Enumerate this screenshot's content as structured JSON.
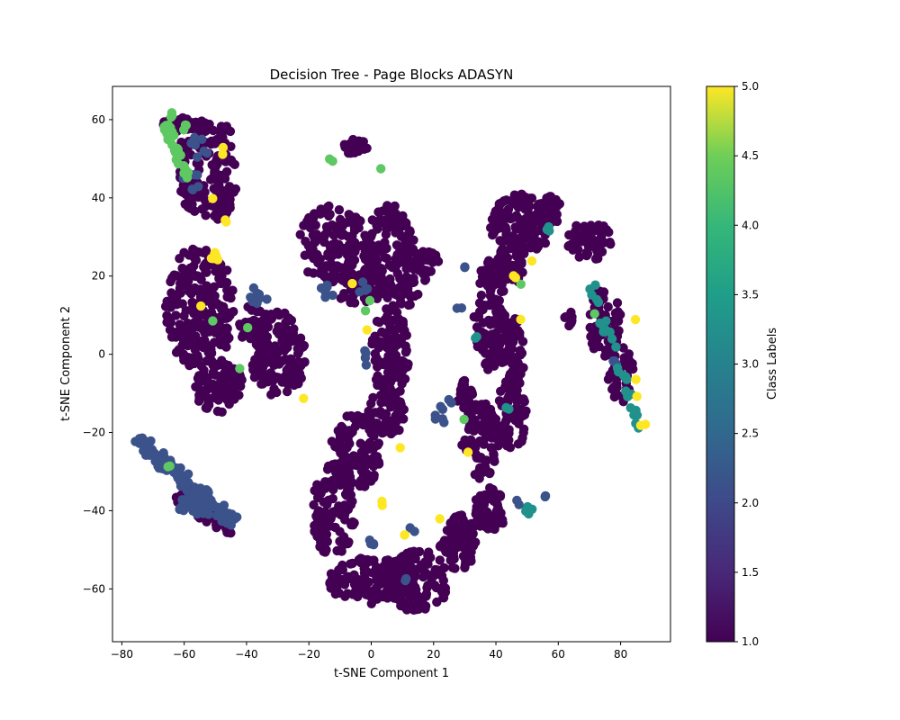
{
  "chart_data": {
    "type": "scatter",
    "title": "Decision Tree - Page Blocks ADASYN",
    "xlabel": "t-SNE Component 1",
    "ylabel": "t-SNE Component 2",
    "xlim": [
      -83,
      96
    ],
    "ylim": [
      -73.5,
      68.5
    ],
    "xticks": [
      -80,
      -60,
      -40,
      -20,
      0,
      20,
      40,
      60,
      80
    ],
    "yticks": [
      -60,
      -40,
      -20,
      0,
      20,
      40,
      60
    ],
    "grid": false,
    "colorbar": {
      "label": "Class Labels",
      "colormap": "viridis",
      "range": [
        1.0,
        5.0
      ],
      "ticks": [
        "1.0",
        "1.5",
        "2.0",
        "2.5",
        "3.0",
        "3.5",
        "4.0",
        "4.5",
        "5.0"
      ]
    },
    "class_colors": {
      "1": "#440154",
      "2": "#3b528b",
      "3": "#21918c",
      "4": "#5ec962",
      "5": "#fde725"
    },
    "clusters": [
      {
        "class": 1,
        "shape": "blob",
        "cx": -55,
        "cy": 48,
        "rx": 7,
        "ry": 13,
        "n": 90
      },
      {
        "class": 1,
        "shape": "blob",
        "cx": -47,
        "cy": 47,
        "rx": 4,
        "ry": 12,
        "n": 50
      },
      {
        "class": 1,
        "shape": "blob",
        "cx": -55,
        "cy": 12,
        "rx": 11,
        "ry": 16,
        "n": 220
      },
      {
        "class": 1,
        "shape": "blob",
        "cx": -49,
        "cy": -8,
        "rx": 8,
        "ry": 7,
        "n": 90
      },
      {
        "class": 1,
        "shape": "blob",
        "cx": -30,
        "cy": 0,
        "rx": 9,
        "ry": 11,
        "n": 140
      },
      {
        "class": 1,
        "shape": "blob",
        "cx": -38,
        "cy": 8,
        "rx": 5,
        "ry": 5,
        "n": 40
      },
      {
        "class": 1,
        "shape": "blob",
        "cx": -25,
        "cy": -5,
        "rx": 3,
        "ry": 3,
        "n": 20
      },
      {
        "class": 1,
        "shape": "blob",
        "cx": -12,
        "cy": 28,
        "rx": 12,
        "ry": 10,
        "n": 140
      },
      {
        "class": 1,
        "shape": "blob",
        "cx": -5,
        "cy": 18,
        "rx": 8,
        "ry": 5,
        "n": 50
      },
      {
        "class": 1,
        "shape": "blob",
        "cx": -5,
        "cy": 53,
        "rx": 4,
        "ry": 2,
        "n": 25
      },
      {
        "class": 1,
        "shape": "blob",
        "cx": 6,
        "cy": 25,
        "rx": 8,
        "ry": 14,
        "n": 130
      },
      {
        "class": 1,
        "shape": "blob",
        "cx": 12,
        "cy": 20,
        "rx": 6,
        "ry": 8,
        "n": 50
      },
      {
        "class": 1,
        "shape": "blob",
        "cx": 18,
        "cy": 24,
        "rx": 4,
        "ry": 3,
        "n": 20
      },
      {
        "class": 1,
        "shape": "blob",
        "cx": 6,
        "cy": 0,
        "rx": 6,
        "ry": 12,
        "n": 110
      },
      {
        "class": 1,
        "shape": "blob",
        "cx": 5,
        "cy": -15,
        "rx": 6,
        "ry": 6,
        "n": 60
      },
      {
        "class": 1,
        "shape": "blob",
        "cx": -5,
        "cy": -25,
        "rx": 8,
        "ry": 10,
        "n": 110
      },
      {
        "class": 1,
        "shape": "blob",
        "cx": -12,
        "cy": -40,
        "rx": 7,
        "ry": 12,
        "n": 110
      },
      {
        "class": 1,
        "shape": "blob",
        "cx": 0,
        "cy": -58,
        "rx": 14,
        "ry": 6,
        "n": 140
      },
      {
        "class": 1,
        "shape": "blob",
        "cx": 15,
        "cy": -58,
        "rx": 10,
        "ry": 8,
        "n": 110
      },
      {
        "class": 1,
        "shape": "blob",
        "cx": 28,
        "cy": -48,
        "rx": 6,
        "ry": 7,
        "n": 70
      },
      {
        "class": 1,
        "shape": "blob",
        "cx": 38,
        "cy": -40,
        "rx": 5,
        "ry": 6,
        "n": 50
      },
      {
        "class": 1,
        "shape": "blob",
        "cx": 35,
        "cy": -22,
        "rx": 6,
        "ry": 10,
        "n": 90
      },
      {
        "class": 1,
        "shape": "blob",
        "cx": 45,
        "cy": -15,
        "rx": 5,
        "ry": 10,
        "n": 70
      },
      {
        "class": 1,
        "shape": "blob",
        "cx": 38,
        "cy": 10,
        "rx": 5,
        "ry": 14,
        "n": 110
      },
      {
        "class": 1,
        "shape": "blob",
        "cx": 45,
        "cy": 0,
        "rx": 4,
        "ry": 12,
        "n": 70
      },
      {
        "class": 1,
        "shape": "blob",
        "cx": 48,
        "cy": 33,
        "rx": 10,
        "ry": 8,
        "n": 120
      },
      {
        "class": 1,
        "shape": "blob",
        "cx": 57,
        "cy": 37,
        "rx": 4,
        "ry": 4,
        "n": 30
      },
      {
        "class": 1,
        "shape": "blob",
        "cx": 43,
        "cy": 22,
        "rx": 6,
        "ry": 5,
        "n": 50
      },
      {
        "class": 1,
        "shape": "blob",
        "cx": 70,
        "cy": 29,
        "rx": 7,
        "ry": 5,
        "n": 60
      },
      {
        "class": 1,
        "shape": "blob",
        "cx": 75,
        "cy": 8,
        "rx": 5,
        "ry": 10,
        "n": 60
      },
      {
        "class": 1,
        "shape": "blob",
        "cx": 80,
        "cy": -5,
        "rx": 4,
        "ry": 8,
        "n": 40
      },
      {
        "class": 1,
        "shape": "blob",
        "cx": 64,
        "cy": 9,
        "rx": 2,
        "ry": 2,
        "n": 10
      },
      {
        "class": 1,
        "shape": "blob",
        "cx": 30,
        "cy": -10,
        "rx": 3,
        "ry": 4,
        "n": 20
      },
      {
        "class": 1,
        "shape": "blob",
        "cx": -48,
        "cy": 38,
        "rx": 3,
        "ry": 4,
        "n": 20
      },
      {
        "class": 1,
        "shape": "blob",
        "cx": -62,
        "cy": 59,
        "rx": 5,
        "ry": 2,
        "n": 20
      },
      {
        "class": 1,
        "shape": "line",
        "x1": -62,
        "y1": -37,
        "x2": -46,
        "y2": -44,
        "w": 2,
        "n": 40
      },
      {
        "class": 2,
        "shape": "line",
        "x1": -75,
        "y1": -22,
        "x2": -44,
        "y2": -43,
        "w": 1.8,
        "n": 110
      },
      {
        "class": 2,
        "shape": "blob",
        "cx": -56,
        "cy": -38,
        "rx": 6,
        "ry": 4,
        "n": 40
      },
      {
        "class": 2,
        "shape": "blob",
        "cx": -55,
        "cy": 53,
        "rx": 3,
        "ry": 3,
        "n": 8
      },
      {
        "class": 2,
        "shape": "blob",
        "cx": -58,
        "cy": 44,
        "rx": 3,
        "ry": 3,
        "n": 8
      },
      {
        "class": 2,
        "shape": "blob",
        "cx": -37,
        "cy": 15,
        "rx": 4,
        "ry": 2,
        "n": 8
      },
      {
        "class": 2,
        "shape": "blob",
        "cx": -14,
        "cy": 16,
        "rx": 3,
        "ry": 2,
        "n": 6
      },
      {
        "class": 2,
        "shape": "blob",
        "cx": -3,
        "cy": 17,
        "rx": 2,
        "ry": 2,
        "n": 4
      },
      {
        "class": 2,
        "shape": "blob",
        "cx": -2,
        "cy": -1,
        "rx": 2,
        "ry": 2,
        "n": 4
      },
      {
        "class": 2,
        "shape": "blob",
        "cx": 22,
        "cy": -16,
        "rx": 2,
        "ry": 3,
        "n": 6
      },
      {
        "class": 2,
        "shape": "blob",
        "cx": 25,
        "cy": -12,
        "rx": 1,
        "ry": 1,
        "n": 3
      },
      {
        "class": 2,
        "shape": "blob",
        "cx": 1,
        "cy": -48,
        "rx": 2,
        "ry": 1,
        "n": 4
      },
      {
        "class": 2,
        "shape": "blob",
        "cx": 13,
        "cy": -45,
        "rx": 1,
        "ry": 1,
        "n": 2
      },
      {
        "class": 2,
        "shape": "blob",
        "cx": 11,
        "cy": -58,
        "rx": 1,
        "ry": 1,
        "n": 2
      },
      {
        "class": 2,
        "shape": "blob",
        "cx": 30,
        "cy": 23,
        "rx": 1,
        "ry": 1,
        "n": 2
      },
      {
        "class": 2,
        "shape": "blob",
        "cx": 28,
        "cy": 12,
        "rx": 1,
        "ry": 1,
        "n": 2
      },
      {
        "class": 2,
        "shape": "blob",
        "cx": 55,
        "cy": -36,
        "rx": 1,
        "ry": 1,
        "n": 2
      },
      {
        "class": 2,
        "shape": "blob",
        "cx": 47,
        "cy": -38,
        "rx": 1,
        "ry": 1,
        "n": 2
      },
      {
        "class": 2,
        "shape": "blob",
        "cx": 78,
        "cy": -2,
        "rx": 1,
        "ry": 1,
        "n": 3
      },
      {
        "class": 3,
        "shape": "blob",
        "cx": 51,
        "cy": -40,
        "rx": 1.5,
        "ry": 1.5,
        "n": 6
      },
      {
        "class": 3,
        "shape": "blob",
        "cx": 57,
        "cy": 32,
        "rx": 1,
        "ry": 1,
        "n": 3
      },
      {
        "class": 3,
        "shape": "line",
        "x1": 71,
        "y1": 17,
        "x2": 86,
        "y2": -19,
        "w": 1.2,
        "n": 30
      },
      {
        "class": 3,
        "shape": "blob",
        "cx": 33,
        "cy": 4,
        "rx": 1,
        "ry": 1,
        "n": 2
      },
      {
        "class": 3,
        "shape": "blob",
        "cx": 44,
        "cy": -13,
        "rx": 1,
        "ry": 1,
        "n": 2
      },
      {
        "class": 4,
        "shape": "line",
        "x1": -66,
        "y1": 59,
        "x2": -59,
        "y2": 45,
        "w": 1,
        "n": 40
      },
      {
        "class": 4,
        "shape": "blob",
        "cx": -64,
        "cy": 61,
        "rx": 1,
        "ry": 1,
        "n": 3
      },
      {
        "class": 4,
        "shape": "blob",
        "cx": -60,
        "cy": 58,
        "rx": 1,
        "ry": 1,
        "n": 3
      },
      {
        "class": 4,
        "shape": "blob",
        "cx": -13,
        "cy": 49.5,
        "rx": 1,
        "ry": 0.5,
        "n": 2
      },
      {
        "class": 4,
        "shape": "blob",
        "cx": 3,
        "cy": 47,
        "rx": 0.5,
        "ry": 0.5,
        "n": 1
      },
      {
        "class": 4,
        "shape": "blob",
        "cx": -51,
        "cy": 8.5,
        "rx": 0.5,
        "ry": 0.5,
        "n": 1
      },
      {
        "class": 4,
        "shape": "blob",
        "cx": -42,
        "cy": -4,
        "rx": 0.5,
        "ry": 0.5,
        "n": 1
      },
      {
        "class": 4,
        "shape": "blob",
        "cx": -40,
        "cy": 6.5,
        "rx": 0.5,
        "ry": 0.5,
        "n": 1
      },
      {
        "class": 4,
        "shape": "blob",
        "cx": -2,
        "cy": 11,
        "rx": 0.5,
        "ry": 0.5,
        "n": 1
      },
      {
        "class": 4,
        "shape": "blob",
        "cx": 0,
        "cy": 13.5,
        "rx": 0.5,
        "ry": 0.5,
        "n": 1
      },
      {
        "class": 4,
        "shape": "blob",
        "cx": -65,
        "cy": -29,
        "rx": 1,
        "ry": 0.5,
        "n": 2
      },
      {
        "class": 4,
        "shape": "blob",
        "cx": 30,
        "cy": -17,
        "rx": 0.5,
        "ry": 0.5,
        "n": 1
      },
      {
        "class": 4,
        "shape": "blob",
        "cx": 48,
        "cy": 17.5,
        "rx": 0.5,
        "ry": 0.5,
        "n": 1
      },
      {
        "class": 4,
        "shape": "blob",
        "cx": 72,
        "cy": 10,
        "rx": 0.5,
        "ry": 0.5,
        "n": 1
      },
      {
        "class": 5,
        "shape": "blob",
        "cx": -50,
        "cy": 25,
        "rx": 1.5,
        "ry": 1,
        "n": 5
      },
      {
        "class": 5,
        "shape": "blob",
        "cx": -46,
        "cy": 34,
        "rx": 1,
        "ry": 1,
        "n": 2
      },
      {
        "class": 5,
        "shape": "blob",
        "cx": -48,
        "cy": 52,
        "rx": 1,
        "ry": 1,
        "n": 2
      },
      {
        "class": 5,
        "shape": "blob",
        "cx": -51,
        "cy": 40,
        "rx": 0.5,
        "ry": 0.5,
        "n": 1
      },
      {
        "class": 5,
        "shape": "blob",
        "cx": -55,
        "cy": 12,
        "rx": 0.5,
        "ry": 0.5,
        "n": 1
      },
      {
        "class": 5,
        "shape": "blob",
        "cx": -22,
        "cy": -11,
        "rx": 0.5,
        "ry": 0.5,
        "n": 1
      },
      {
        "class": 5,
        "shape": "blob",
        "cx": -6,
        "cy": 18,
        "rx": 0.5,
        "ry": 0.5,
        "n": 1
      },
      {
        "class": 5,
        "shape": "blob",
        "cx": -1,
        "cy": 6,
        "rx": 0.5,
        "ry": 0.5,
        "n": 1
      },
      {
        "class": 5,
        "shape": "blob",
        "cx": 9,
        "cy": -23.5,
        "rx": 0.5,
        "ry": 0.5,
        "n": 1
      },
      {
        "class": 5,
        "shape": "blob",
        "cx": 4,
        "cy": -38,
        "rx": 1,
        "ry": 1,
        "n": 2
      },
      {
        "class": 5,
        "shape": "blob",
        "cx": 10,
        "cy": -46,
        "rx": 1,
        "ry": 0.5,
        "n": 2
      },
      {
        "class": 5,
        "shape": "blob",
        "cx": 22,
        "cy": -42,
        "rx": 0.5,
        "ry": 0.5,
        "n": 1
      },
      {
        "class": 5,
        "shape": "blob",
        "cx": 31,
        "cy": -25,
        "rx": 0.5,
        "ry": 0.5,
        "n": 1
      },
      {
        "class": 5,
        "shape": "blob",
        "cx": 46,
        "cy": 20,
        "rx": 1,
        "ry": 0.5,
        "n": 2
      },
      {
        "class": 5,
        "shape": "blob",
        "cx": 52,
        "cy": 24,
        "rx": 0.5,
        "ry": 0.5,
        "n": 1
      },
      {
        "class": 5,
        "shape": "blob",
        "cx": 48,
        "cy": 9,
        "rx": 0.5,
        "ry": 0.5,
        "n": 1
      },
      {
        "class": 5,
        "shape": "blob",
        "cx": 85,
        "cy": 9,
        "rx": 0.5,
        "ry": 0.5,
        "n": 1
      },
      {
        "class": 5,
        "shape": "blob",
        "cx": 85,
        "cy": -6,
        "rx": 0.5,
        "ry": 0.5,
        "n": 1
      },
      {
        "class": 5,
        "shape": "blob",
        "cx": 85,
        "cy": -11,
        "rx": 0.5,
        "ry": 0.5,
        "n": 1
      },
      {
        "class": 5,
        "shape": "blob",
        "cx": 87,
        "cy": -18,
        "rx": 1,
        "ry": 0.5,
        "n": 2
      }
    ]
  }
}
